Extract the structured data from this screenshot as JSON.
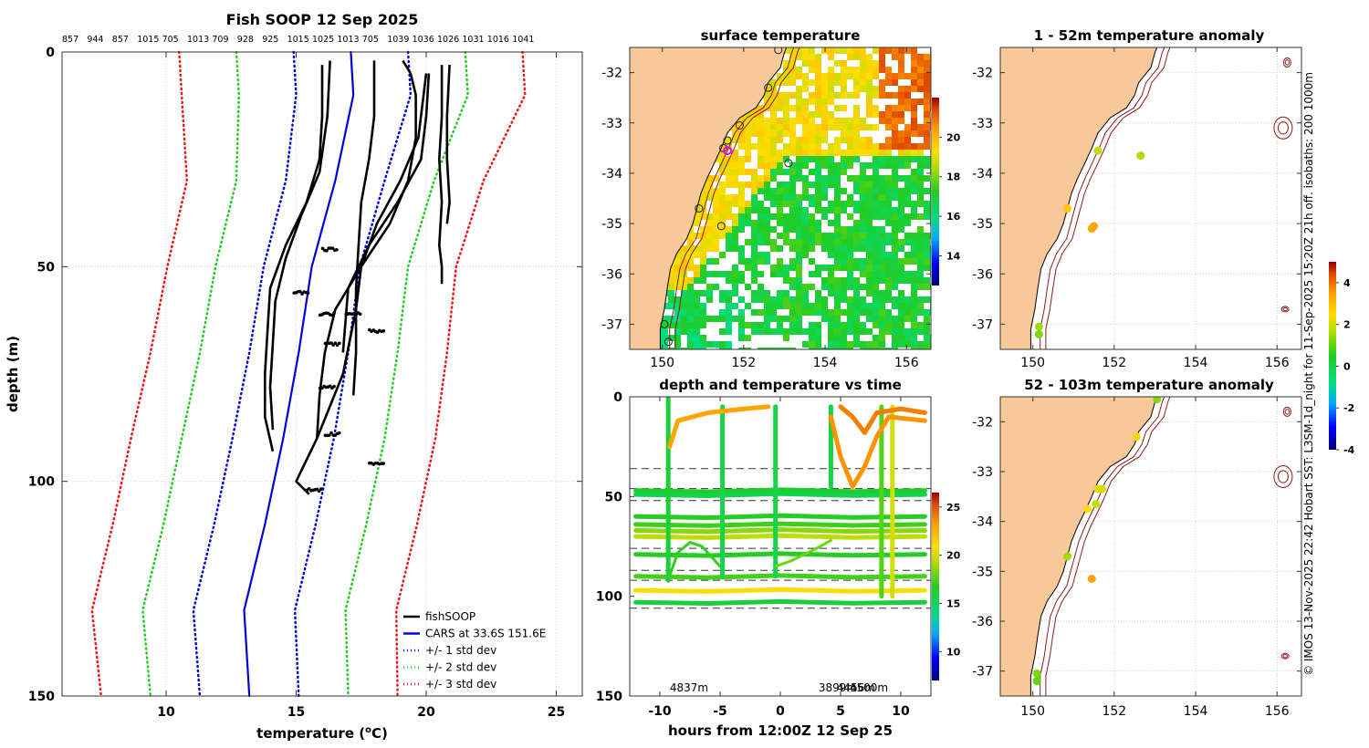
{
  "chart_data": [
    {
      "type": "line",
      "title": "Fish SOOP 12 Sep 2025",
      "top_labels": [
        "857",
        "944",
        "857",
        "1015",
        "705",
        "1013",
        "709",
        "928",
        "925",
        "1015",
        "1025",
        "1013",
        "705",
        "1039",
        "1036",
        "1026",
        "1031",
        "1016",
        "1041"
      ],
      "xlabel": "temperature (",
      "xlabel_sup": "o",
      "xlabel_unit": "C)",
      "ylabel": "depth (m)",
      "xlim": [
        6,
        26
      ],
      "ylim": [
        0,
        150
      ],
      "xticks": [
        "10",
        "15",
        "20",
        "25"
      ],
      "xtick_values": [
        10,
        15,
        20,
        25
      ],
      "yticks": [
        "0",
        "50",
        "100",
        "150"
      ],
      "ytick_values": [
        0,
        50,
        100,
        150
      ],
      "legend": [
        "fishSOOP",
        "CARS at 33.6S 151.6E",
        "+/- 1 std dev",
        "+/- 2 std dev",
        "+/- 3 std dev"
      ],
      "colors": {
        "fish": "#000000",
        "cars": "#0000dd",
        "std1": "#0000dd",
        "std2": "#22cc22",
        "std3": "#ee1111"
      },
      "cars_mean": {
        "depth": [
          0,
          10,
          30,
          50,
          70,
          90,
          110,
          130,
          150
        ],
        "temp": [
          17.1,
          17.2,
          16.5,
          15.6,
          15.1,
          14.5,
          13.8,
          13.0,
          13.2
        ]
      },
      "std_offsets": {
        "depth": [
          0,
          10,
          30,
          50,
          70,
          90,
          110,
          130,
          150
        ],
        "offset": [
          2.2,
          2.2,
          1.9,
          1.85,
          1.9,
          1.95,
          1.95,
          1.95,
          1.9
        ]
      },
      "fish_profiles": [
        {
          "temp": [
            16.0,
            16.0,
            15.9,
            15.4,
            14.6,
            14.0,
            13.9,
            13.8,
            13.8,
            14.1
          ],
          "depth": [
            3,
            15,
            25,
            35,
            45,
            55,
            65,
            75,
            85,
            93
          ]
        },
        {
          "temp": [
            16.3,
            16.2,
            15.9,
            15.2,
            14.6,
            14.2,
            14.1,
            14.0,
            14.1
          ],
          "depth": [
            2,
            15,
            28,
            38,
            48,
            58,
            68,
            78,
            88
          ]
        },
        {
          "temp": [
            18.0,
            18.0,
            17.8,
            17.5,
            17.4,
            17.3,
            17.3,
            17.2
          ],
          "depth": [
            2,
            15,
            25,
            35,
            45,
            55,
            70,
            80
          ]
        },
        {
          "temp": [
            20.0,
            19.9,
            19.7,
            19.0,
            18.1,
            17.5,
            17.3,
            16.8,
            15.8,
            15.0,
            15.5
          ],
          "depth": [
            5,
            10,
            20,
            30,
            40,
            50,
            60,
            75,
            90,
            100,
            103
          ]
        },
        {
          "temp": [
            20.1,
            20.0,
            19.8,
            18.9,
            17.8,
            17.0,
            16.8
          ],
          "depth": [
            5,
            15,
            25,
            35,
            45,
            55,
            70
          ]
        },
        {
          "temp": [
            20.6,
            20.6,
            20.5,
            20.6,
            20.5,
            20.6,
            20.6
          ],
          "depth": [
            3,
            15,
            25,
            35,
            45,
            50,
            54
          ]
        },
        {
          "temp": [
            20.9,
            20.8,
            20.8,
            20.9,
            20.8
          ],
          "depth": [
            3,
            15,
            25,
            35,
            40
          ]
        },
        {
          "temp": [
            19.1,
            19.4,
            19.6,
            19.6,
            19.3,
            18.6,
            17.5,
            16.5,
            16.1,
            15.9,
            15.8
          ],
          "depth": [
            2,
            5,
            10,
            20,
            30,
            40,
            50,
            60,
            70,
            80,
            90
          ]
        }
      ],
      "spot_clusters": [
        {
          "temp": 16.3,
          "depth": 46
        },
        {
          "temp": 16.2,
          "depth": 61
        },
        {
          "temp": 16.4,
          "depth": 68
        },
        {
          "temp": 16.2,
          "depth": 78
        },
        {
          "temp": 16.4,
          "depth": 89
        },
        {
          "temp": 15.2,
          "depth": 56
        },
        {
          "temp": 17.2,
          "depth": 61
        },
        {
          "temp": 18.1,
          "depth": 65
        },
        {
          "temp": 18.1,
          "depth": 96
        },
        {
          "temp": 15.7,
          "depth": 102
        }
      ]
    },
    {
      "type": "heatmap",
      "title": "surface temperature",
      "xlim": [
        149.2,
        156.6
      ],
      "ylim": [
        -37.5,
        -31.5
      ],
      "xticks": [
        "150",
        "152",
        "154",
        "156"
      ],
      "xtick_values": [
        150,
        152,
        154,
        156
      ],
      "yticks": [
        "-32",
        "-33",
        "-34",
        "-35",
        "-36",
        "-37"
      ],
      "ytick_values": [
        -32,
        -33,
        -34,
        -35,
        -36,
        -37
      ],
      "colorbar": {
        "min": 12.5,
        "max": 22,
        "ticks": [
          "14",
          "16",
          "18",
          "20"
        ],
        "tick_values": [
          14,
          16,
          18,
          20
        ]
      }
    },
    {
      "type": "scatter",
      "title": "depth and temperature vs time",
      "xlabel": "hours from 12:00Z 12 Sep 25",
      "xlim": [
        -12.5,
        12.5
      ],
      "ylim": [
        0,
        150
      ],
      "xticks": [
        "-10",
        "-5",
        "0",
        "5",
        "10"
      ],
      "xtick_values": [
        -10,
        -5,
        0,
        5,
        10
      ],
      "yticks": [
        "0",
        "50",
        "100",
        "150"
      ],
      "ytick_values": [
        0,
        50,
        100,
        150
      ],
      "annotations": [
        "4837m",
        "3899m",
        "4500m",
        "4456m"
      ],
      "dashed_depths": [
        36,
        46,
        52,
        76,
        87,
        92,
        106
      ],
      "colorbar": {
        "min": 7,
        "max": 26.5,
        "ticks": [
          "10",
          "15",
          "20",
          "25"
        ],
        "tick_values": [
          10,
          15,
          20,
          25
        ]
      }
    },
    {
      "type": "scatter",
      "title": "1 - 52m temperature anomaly",
      "xlim": [
        149.2,
        156.6
      ],
      "ylim": [
        -37.5,
        -31.5
      ],
      "xticks": [
        "150",
        "152",
        "154",
        "156"
      ],
      "xtick_values": [
        150,
        152,
        154,
        156
      ],
      "yticks": [
        "-32",
        "-33",
        "-34",
        "-35",
        "-36",
        "-37"
      ],
      "ytick_values": [
        -32,
        -33,
        -34,
        -35,
        -36,
        -37
      ],
      "points": [
        {
          "lon": 151.6,
          "lat": -33.55,
          "anom": 1.8
        },
        {
          "lon": 152.65,
          "lat": -33.65,
          "anom": 1.6
        },
        {
          "lon": 150.85,
          "lat": -34.7,
          "anom": 2.8
        },
        {
          "lon": 151.5,
          "lat": -35.05,
          "anom": 3.4
        },
        {
          "lon": 151.45,
          "lat": -35.1,
          "anom": 3.3
        },
        {
          "lon": 150.15,
          "lat": -37.05,
          "anom": 1.5
        },
        {
          "lon": 150.15,
          "lat": -37.2,
          "anom": 1.2
        }
      ]
    },
    {
      "type": "scatter",
      "title": "52 - 103m temperature anomaly",
      "xlim": [
        149.2,
        156.6
      ],
      "ylim": [
        -37.5,
        -31.5
      ],
      "xticks": [
        "150",
        "152",
        "154",
        "156"
      ],
      "xtick_values": [
        150,
        152,
        154,
        156
      ],
      "yticks": [
        "-32",
        "-33",
        "-34",
        "-35",
        "-36",
        "-37"
      ],
      "ytick_values": [
        -32,
        -33,
        -34,
        -35,
        -36,
        -37
      ],
      "points": [
        {
          "lon": 153.05,
          "lat": -31.55,
          "anom": 1.3
        },
        {
          "lon": 152.55,
          "lat": -32.3,
          "anom": 2.6
        },
        {
          "lon": 151.6,
          "lat": -33.35,
          "anom": 2.2
        },
        {
          "lon": 151.7,
          "lat": -33.35,
          "anom": 2.0
        },
        {
          "lon": 151.55,
          "lat": -33.65,
          "anom": 1.8
        },
        {
          "lon": 151.35,
          "lat": -33.75,
          "anom": 2.4
        },
        {
          "lon": 150.85,
          "lat": -34.7,
          "anom": 1.5
        },
        {
          "lon": 151.45,
          "lat": -35.15,
          "anom": 3.4
        },
        {
          "lon": 150.1,
          "lat": -37.05,
          "anom": 1.2
        },
        {
          "lon": 150.1,
          "lat": -37.2,
          "anom": 1.0
        }
      ]
    }
  ],
  "anomaly_colorbar": {
    "min": -4,
    "max": 5,
    "ticks": [
      "4",
      "2",
      "0",
      "-2",
      "-4"
    ],
    "tick_values": [
      4,
      2,
      0,
      -2,
      -4
    ]
  },
  "side_credit": "© IMOS 13-Nov-2025 22:42 Hobart SST: L3SM-1d_night for 11-Sep-2025 15:20Z 21h off. isobaths: 200  1000m"
}
